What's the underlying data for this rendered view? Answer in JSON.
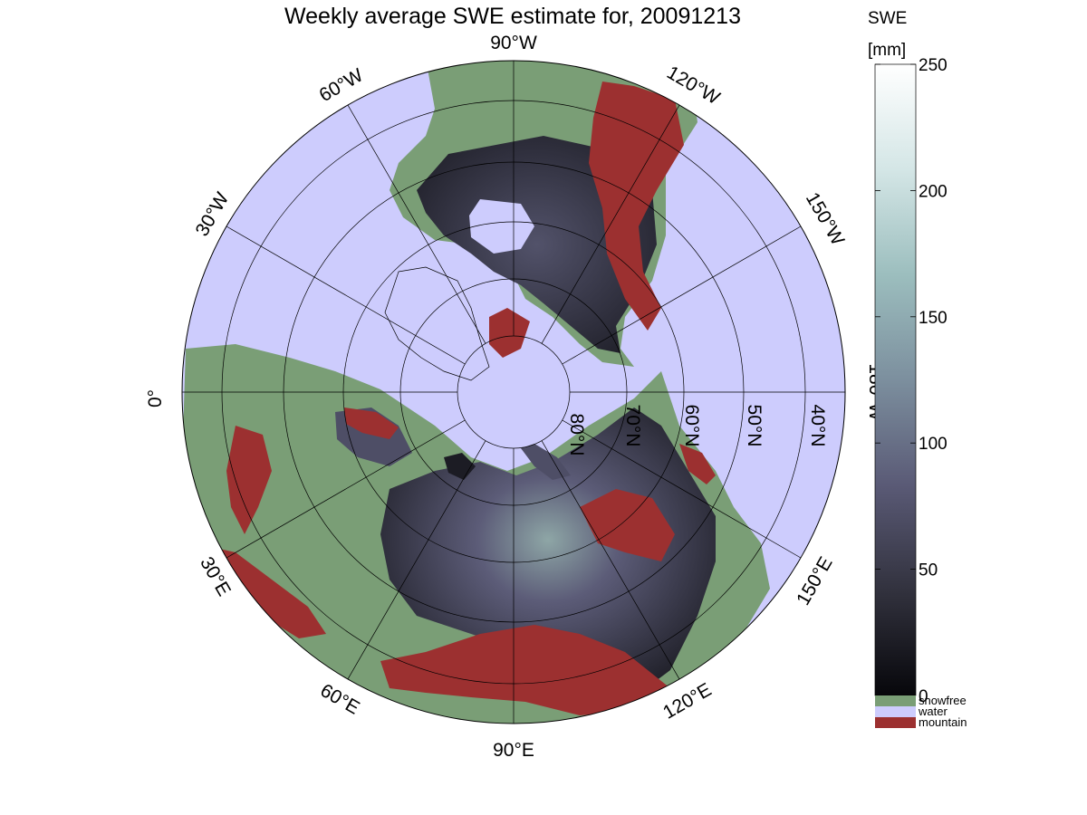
{
  "title": "Weekly average SWE estimate for, 20091213",
  "map": {
    "projection": "north-polar-stereographic",
    "longitude_labels": {
      "0": "0°",
      "30W": "30°W",
      "60W": "60°W",
      "90W": "90°W",
      "120W": "120°W",
      "150W": "150°W",
      "180W": "180°W",
      "30E": "30°E",
      "60E": "60°E",
      "90E": "90°E",
      "120E": "120°E",
      "150E": "150°E"
    },
    "latitude_labels": [
      "40°N",
      "50°N",
      "60°N",
      "70°N",
      "80°N"
    ]
  },
  "colorbar": {
    "title_line1": "SWE",
    "title_line2": "[mm]",
    "min": 0,
    "max": 250,
    "tick_labels": [
      "0",
      "50",
      "100",
      "150",
      "200",
      "250"
    ],
    "gradient_colors": [
      "#07070b",
      "#32323e",
      "#5a5a76",
      "#7c8f9e",
      "#9cbebe",
      "#d4e6e6",
      "#ffffff"
    ],
    "categories": [
      {
        "label": "snowfree",
        "color": "#7a9e76"
      },
      {
        "label": "water",
        "color": "#cdccfd"
      },
      {
        "label": "mountain",
        "color": "#9c3030"
      }
    ]
  },
  "colors": {
    "ocean": "#cdccfd",
    "land_snowfree": "#7a9e76",
    "mountain": "#9c3030",
    "snow_low": "#1c1c24",
    "snow_mid": "#4e4e66",
    "snow_high": "#8ea6a6",
    "grid": "#000000"
  }
}
